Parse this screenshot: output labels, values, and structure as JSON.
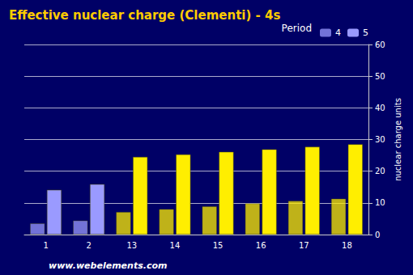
{
  "chart_data": {
    "type": "bar",
    "title": "Effective nuclear charge (Clementi) - 4s",
    "source": "www.webelements.com",
    "y_label": "nuclear charge units",
    "series_label": "Period",
    "categories": [
      "1",
      "2",
      "13",
      "14",
      "15",
      "16",
      "17",
      "18"
    ],
    "series": [
      {
        "name": "4",
        "colors": [
          "#9a9aff",
          "#9a9aff",
          "#ffee00",
          "#ffee00",
          "#ffee00",
          "#ffee00",
          "#ffee00",
          "#ffee00"
        ],
        "values": [
          3.5,
          4.4,
          7.1,
          8.0,
          8.9,
          9.8,
          10.6,
          11.3
        ]
      },
      {
        "name": "5",
        "colors": [
          "#9a9aff",
          "#9a9aff",
          "#ffee00",
          "#ffee00",
          "#ffee00",
          "#ffee00",
          "#ffee00",
          "#ffee00"
        ],
        "values": [
          14.1,
          15.9,
          24.5,
          25.3,
          26.1,
          26.9,
          27.7,
          28.5
        ]
      }
    ],
    "ylim": [
      0,
      60
    ],
    "yticks": [
      0,
      10,
      20,
      30,
      40,
      50,
      60
    ],
    "grid": true,
    "legend": "top-right"
  }
}
